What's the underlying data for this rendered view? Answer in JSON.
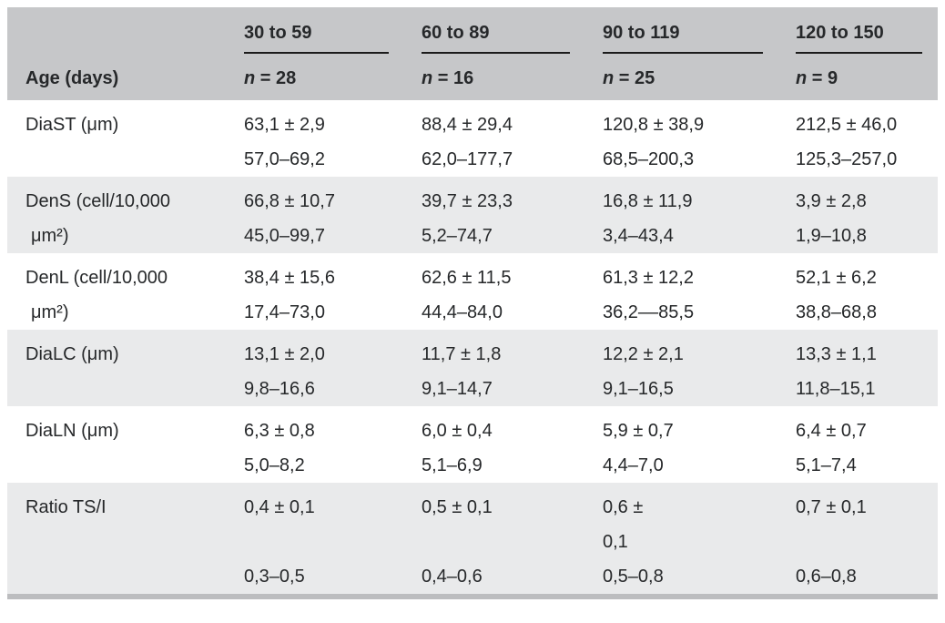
{
  "table": {
    "corner_label": "Age (days)",
    "columns": [
      {
        "range_label": "30 to 59",
        "n_symbol": "n",
        "n_rest": " = 28"
      },
      {
        "range_label": "60 to 89",
        "n_symbol": "n",
        "n_rest": " = 16"
      },
      {
        "range_label": "90 to 119",
        "n_symbol": "n",
        "n_rest": " = 25"
      },
      {
        "range_label": "120 to 150",
        "n_symbol": "n",
        "n_rest": " = 9"
      }
    ],
    "rows": [
      {
        "label_line1": "DiaST (μm)",
        "label_line2": "",
        "cells": [
          {
            "mean": "63,1 ± 2,9",
            "range": "57,0–69,2"
          },
          {
            "mean": "88,4 ± 29,4",
            "range": "62,0–177,7"
          },
          {
            "mean": "120,8 ± 38,9",
            "range": "68,5–200,3"
          },
          {
            "mean": "212,5 ± 46,0",
            "range": "125,3–257,0"
          }
        ]
      },
      {
        "label_line1": "DenS (cell/10,000",
        "label_line2": "μm²)",
        "cells": [
          {
            "mean": "66,8 ± 10,7",
            "range": "45,0–99,7"
          },
          {
            "mean": "39,7 ± 23,3",
            "range": "5,2–74,7"
          },
          {
            "mean": "16,8 ± 11,9",
            "range": "3,4–43,4"
          },
          {
            "mean": "3,9 ± 2,8",
            "range": "1,9–10,8"
          }
        ]
      },
      {
        "label_line1": "DenL (cell/10,000",
        "label_line2": "μm²)",
        "cells": [
          {
            "mean": "38,4 ± 15,6",
            "range": "17,4–73,0"
          },
          {
            "mean": "62,6 ± 11,5",
            "range": "44,4–84,0"
          },
          {
            "mean": "61,3 ± 12,2",
            "range": "36,2––85,5"
          },
          {
            "mean": "52,1 ± 6,2",
            "range": "38,8–68,8"
          }
        ]
      },
      {
        "label_line1": "DiaLC (μm)",
        "label_line2": "",
        "cells": [
          {
            "mean": "13,1 ± 2,0",
            "range": "9,8–16,6"
          },
          {
            "mean": "11,7 ± 1,8",
            "range": "9,1–14,7"
          },
          {
            "mean": "12,2 ± 2,1",
            "range": "9,1–16,5"
          },
          {
            "mean": "13,3 ± 1,1",
            "range": "11,8–15,1"
          }
        ]
      },
      {
        "label_line1": "DiaLN (μm)",
        "label_line2": "",
        "cells": [
          {
            "mean": "6,3 ± 0,8",
            "range": "5,0–8,2"
          },
          {
            "mean": "6,0 ± 0,4",
            "range": "5,1–6,9"
          },
          {
            "mean": "5,9 ± 0,7",
            "range": "4,4–7,0"
          },
          {
            "mean": "6,4 ± 0,7",
            "range": "5,1–7,4"
          }
        ]
      },
      {
        "label_line1": "Ratio TS/I",
        "label_line2": "",
        "cells": [
          {
            "mean": "0,4 ± 0,1",
            "range": "0,3–0,5"
          },
          {
            "mean": "0,5 ± 0,1",
            "range": "0,4–0,6"
          },
          {
            "mean": "0,6 ±\n0,1",
            "range": "0,5–0,8"
          },
          {
            "mean": "0,7 ± 0,1",
            "range": "0,6–0,8"
          }
        ]
      }
    ]
  },
  "colors": {
    "header_background": "#c6c7c9",
    "stripe_background": "#e9eaeb",
    "text": "#26282a",
    "spanner_rule": "#1b1b1b",
    "bottom_bar": "#bcbdbf"
  }
}
